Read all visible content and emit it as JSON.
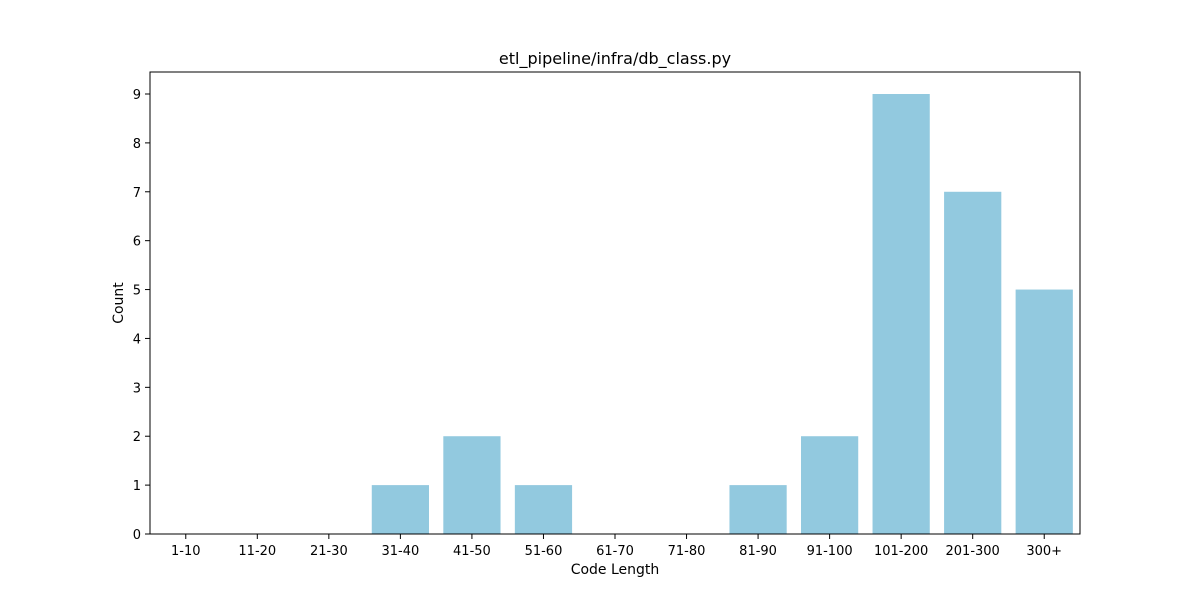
{
  "chart_data": {
    "type": "bar",
    "title": "etl_pipeline/infra/db_class.py",
    "xlabel": "Code Length",
    "ylabel": "Count",
    "categories": [
      "1-10",
      "11-20",
      "21-30",
      "31-40",
      "41-50",
      "51-60",
      "61-70",
      "71-80",
      "81-90",
      "91-100",
      "101-200",
      "201-300",
      "300+"
    ],
    "values": [
      0,
      0,
      0,
      1,
      2,
      1,
      0,
      0,
      1,
      2,
      9,
      7,
      5
    ],
    "ylim": [
      0,
      9.45
    ],
    "yticks": [
      0,
      1,
      2,
      3,
      4,
      5,
      6,
      7,
      8,
      9
    ],
    "bar_color": "#92c9df",
    "grid": false,
    "legend": false
  }
}
